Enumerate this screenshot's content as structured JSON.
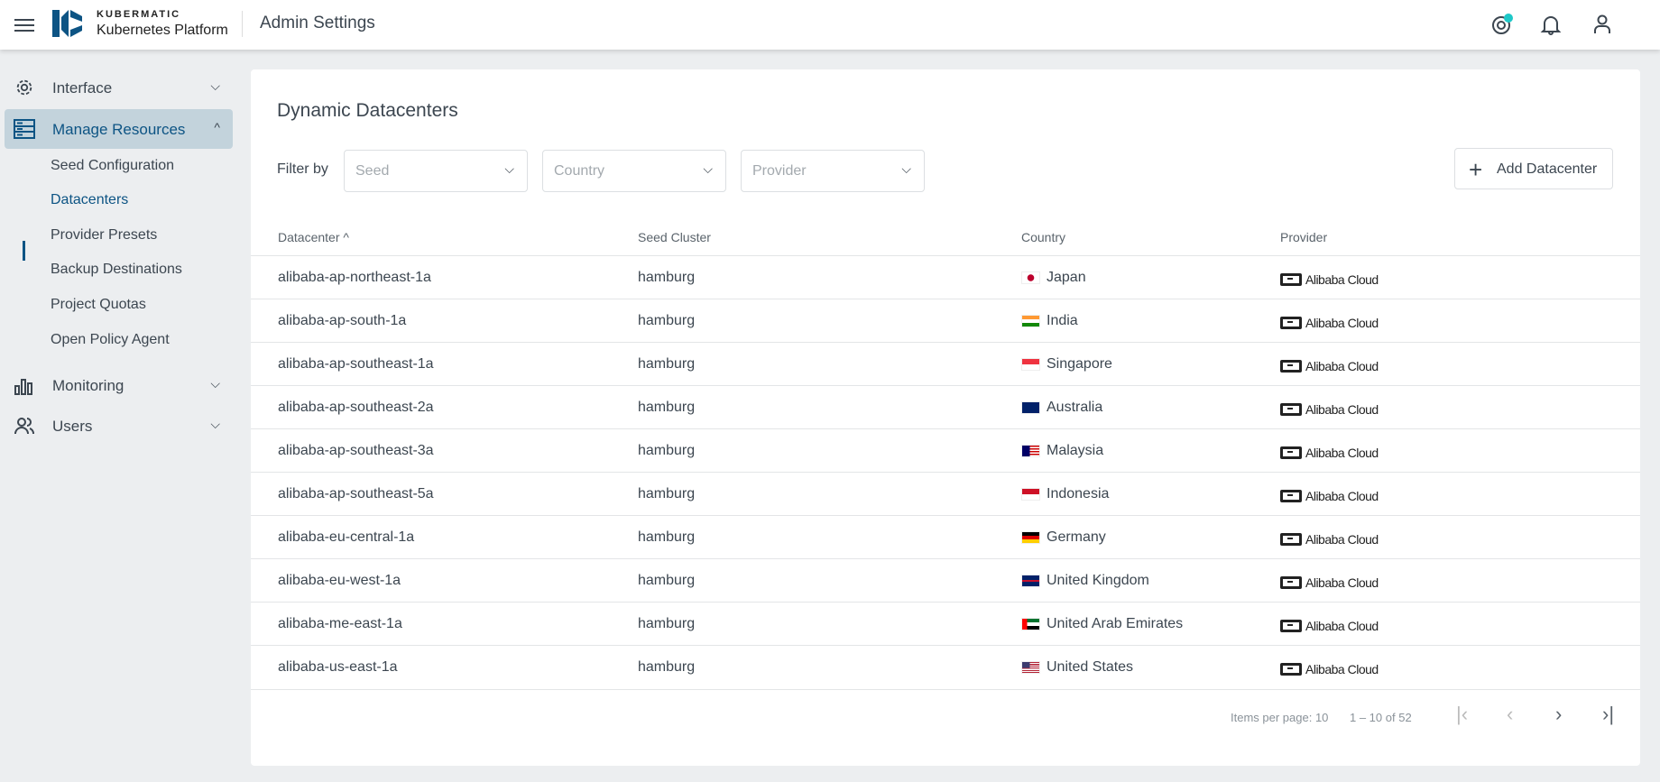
{
  "header": {
    "brand_top": "KUBERMATIC",
    "brand_bottom": "Kubernetes Platform",
    "title": "Admin Settings",
    "accent": "#1ec8c8"
  },
  "sidebar": {
    "items": [
      {
        "label": "Interface",
        "icon": "gear-icon"
      },
      {
        "label": "Manage Resources",
        "icon": "server-icon",
        "expanded": true
      },
      {
        "label": "Monitoring",
        "icon": "bar-chart-icon"
      },
      {
        "label": "Users",
        "icon": "users-icon"
      }
    ],
    "sub_items": [
      "Seed Configuration",
      "Datacenters",
      "Provider Presets",
      "Backup Destinations",
      "Project Quotas",
      "Open Policy Agent"
    ],
    "active_sub": "Datacenters"
  },
  "main": {
    "title": "Dynamic Datacenters",
    "filter_label": "Filter by",
    "filters": [
      {
        "placeholder": "Seed"
      },
      {
        "placeholder": "Country"
      },
      {
        "placeholder": "Provider"
      }
    ],
    "add_button": "Add Datacenter",
    "columns": [
      "Datacenter",
      "Seed Cluster",
      "Country",
      "Provider"
    ],
    "sort_indicator": "^",
    "rows": [
      {
        "datacenter": "alibaba-ap-northeast-1a",
        "seed": "hamburg",
        "country": "Japan",
        "flag": "jp",
        "provider": "Alibaba Cloud"
      },
      {
        "datacenter": "alibaba-ap-south-1a",
        "seed": "hamburg",
        "country": "India",
        "flag": "in",
        "provider": "Alibaba Cloud"
      },
      {
        "datacenter": "alibaba-ap-southeast-1a",
        "seed": "hamburg",
        "country": "Singapore",
        "flag": "sg",
        "provider": "Alibaba Cloud"
      },
      {
        "datacenter": "alibaba-ap-southeast-2a",
        "seed": "hamburg",
        "country": "Australia",
        "flag": "au",
        "provider": "Alibaba Cloud"
      },
      {
        "datacenter": "alibaba-ap-southeast-3a",
        "seed": "hamburg",
        "country": "Malaysia",
        "flag": "my",
        "provider": "Alibaba Cloud"
      },
      {
        "datacenter": "alibaba-ap-southeast-5a",
        "seed": "hamburg",
        "country": "Indonesia",
        "flag": "id",
        "provider": "Alibaba Cloud"
      },
      {
        "datacenter": "alibaba-eu-central-1a",
        "seed": "hamburg",
        "country": "Germany",
        "flag": "de",
        "provider": "Alibaba Cloud"
      },
      {
        "datacenter": "alibaba-eu-west-1a",
        "seed": "hamburg",
        "country": "United Kingdom",
        "flag": "gb",
        "provider": "Alibaba Cloud"
      },
      {
        "datacenter": "alibaba-me-east-1a",
        "seed": "hamburg",
        "country": "United Arab Emirates",
        "flag": "ae",
        "provider": "Alibaba Cloud"
      },
      {
        "datacenter": "alibaba-us-east-1a",
        "seed": "hamburg",
        "country": "United States",
        "flag": "us",
        "provider": "Alibaba Cloud"
      }
    ]
  },
  "paginator": {
    "items_per_page": "Items per page: 10",
    "range": "1 – 10 of 52"
  }
}
